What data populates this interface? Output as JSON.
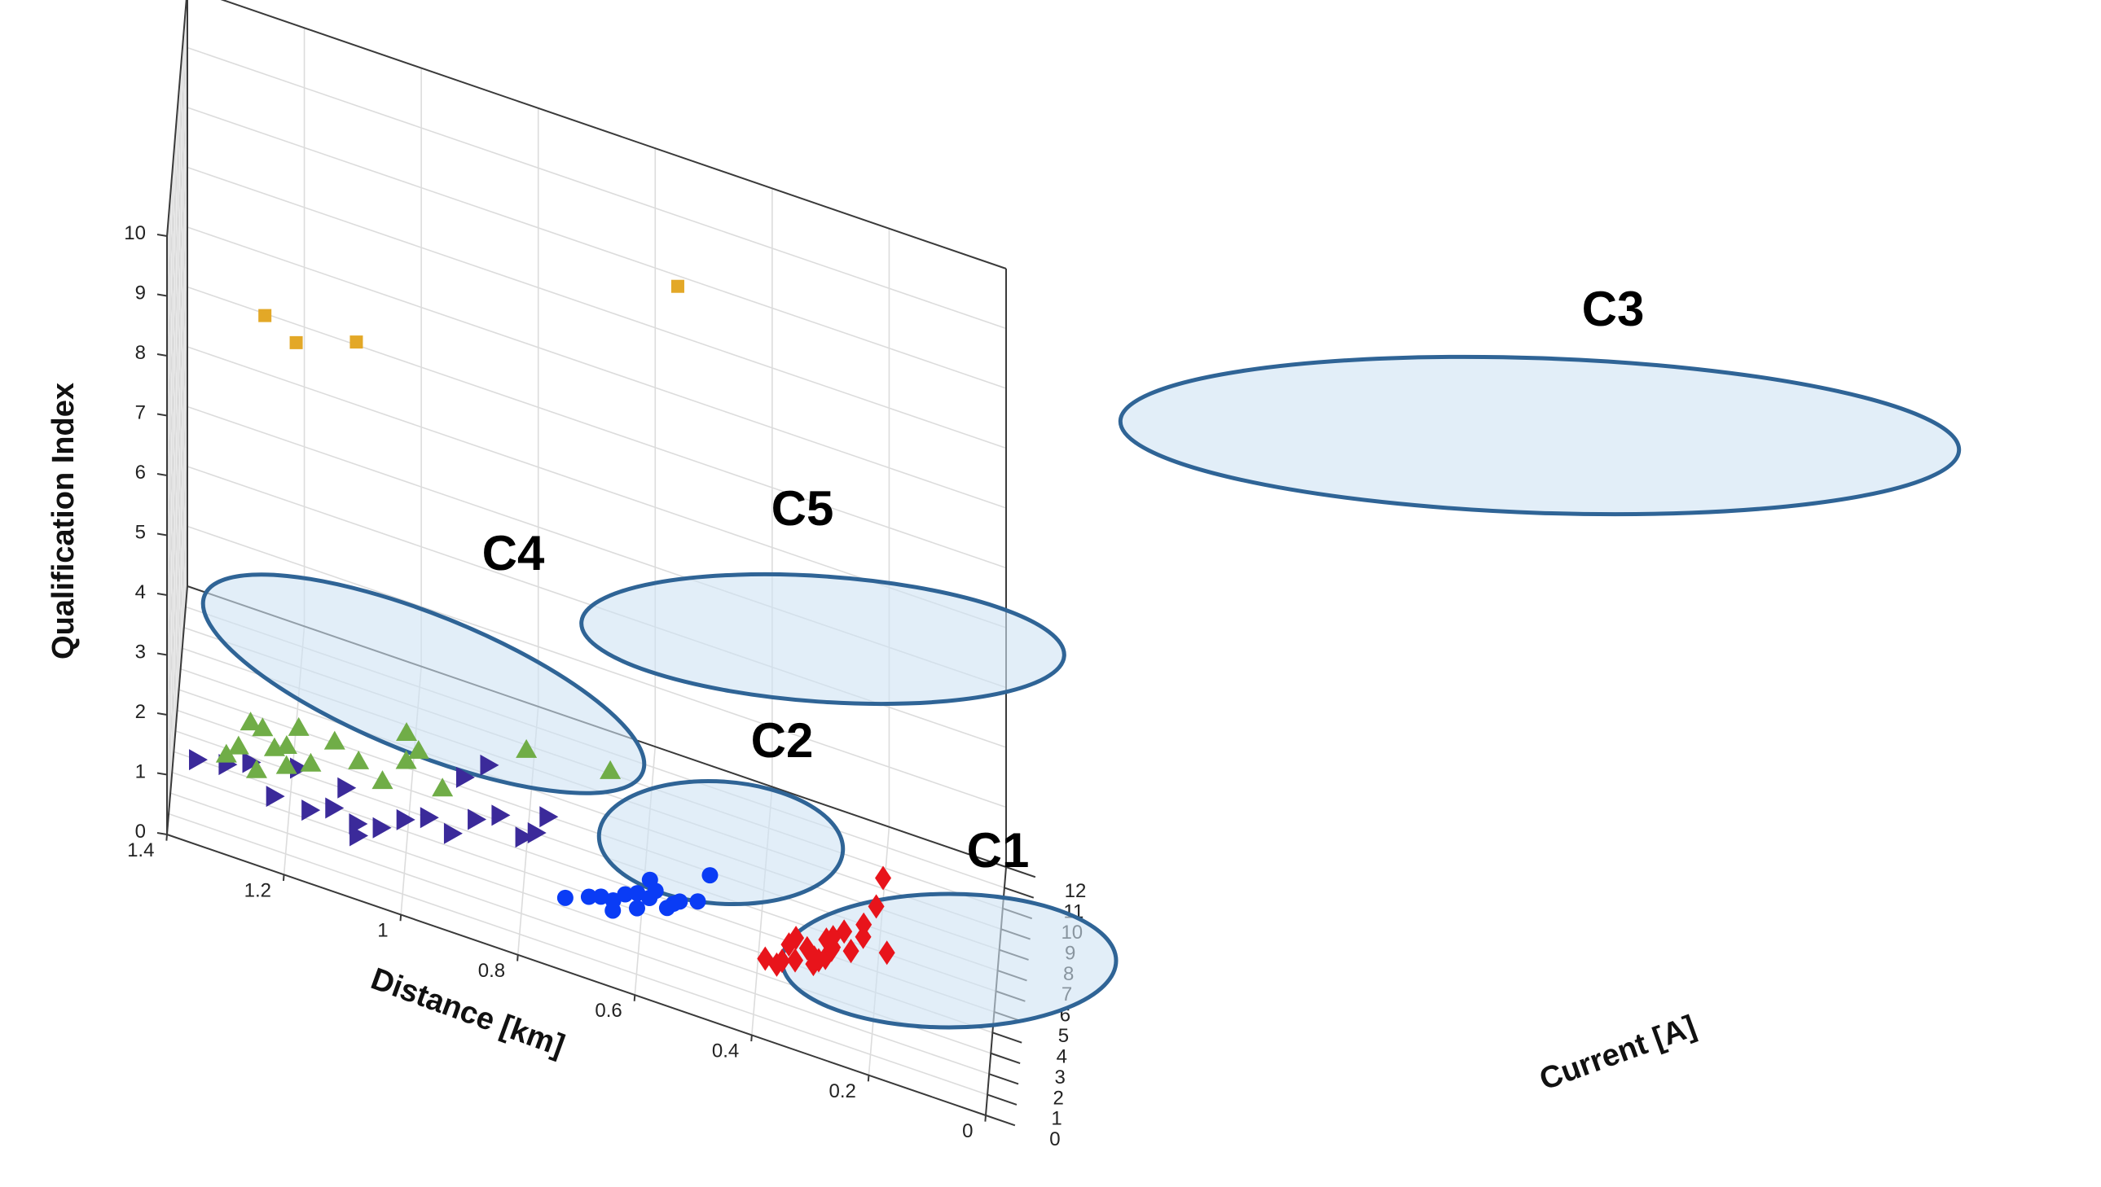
{
  "chart_data": {
    "type": "scatter3d",
    "title": "",
    "xlabel": "Current [A]",
    "ylabel": "Distance [km]",
    "zlabel": "Qualification Index",
    "xlim": [
      0,
      12
    ],
    "ylim": [
      0,
      1.4
    ],
    "zlim": [
      0,
      10
    ],
    "x_ticks": [
      "0",
      "1",
      "2",
      "3",
      "4",
      "5",
      "6",
      "7",
      "8",
      "9",
      "10",
      "11",
      "12"
    ],
    "y_ticks": [
      "0",
      "0.2",
      "0.4",
      "0.6",
      "0.8",
      "1",
      "1.2",
      "1.4"
    ],
    "z_ticks": [
      "0",
      "1",
      "2",
      "3",
      "4",
      "5",
      "6",
      "7",
      "8",
      "9",
      "10"
    ],
    "grid": true,
    "ellipse_fill": "#cfe2f3",
    "ellipse_stroke": "#2f6496",
    "series": [
      {
        "name": "C1",
        "label": "C1",
        "marker": "diamond",
        "color": "#e8141b",
        "points": [
          [
            0.6,
            0.35,
            1.2
          ],
          [
            0.9,
            0.36,
            1.0
          ],
          [
            1.2,
            0.34,
            1.3
          ],
          [
            1.4,
            0.33,
            1.0
          ],
          [
            1.6,
            0.31,
            1.2
          ],
          [
            1.8,
            0.3,
            0.9
          ],
          [
            2.0,
            0.28,
            1.0
          ],
          [
            2.2,
            0.27,
            1.1
          ],
          [
            2.4,
            0.3,
            0.8
          ],
          [
            2.6,
            0.28,
            1.1
          ],
          [
            2.9,
            0.27,
            0.9
          ],
          [
            3.3,
            0.24,
            0.8
          ],
          [
            3.6,
            0.22,
            1.0
          ],
          [
            3.8,
            0.18,
            0.8
          ],
          [
            3.9,
            0.22,
            1.1
          ],
          [
            4.4,
            0.2,
            1.3
          ],
          [
            5.0,
            0.19,
            1.6
          ],
          [
            1.0,
            0.38,
            1.0
          ],
          [
            1.5,
            0.29,
            1.1
          ],
          [
            2.7,
            0.25,
            1.3
          ],
          [
            1.9,
            0.33,
            1.2
          ],
          [
            3.1,
            0.27,
            1.0
          ]
        ]
      },
      {
        "name": "C2",
        "label": "C2",
        "marker": "circle",
        "color": "#0a3cf5",
        "points": [
          [
            0.35,
            0.72,
            1.1
          ],
          [
            0.5,
            0.68,
            1.2
          ],
          [
            0.7,
            0.66,
            1.2
          ],
          [
            1.0,
            0.64,
            1.1
          ],
          [
            1.2,
            0.62,
            1.2
          ],
          [
            1.45,
            0.6,
            1.2
          ],
          [
            1.7,
            0.58,
            1.1
          ],
          [
            1.85,
            0.57,
            1.2
          ],
          [
            2.0,
            0.58,
            1.3
          ],
          [
            2.1,
            0.54,
            1.0
          ],
          [
            2.3,
            0.53,
            1.0
          ],
          [
            2.6,
            0.5,
            1.0
          ],
          [
            0.8,
            0.64,
            1.0
          ],
          [
            1.3,
            0.6,
            1.0
          ],
          [
            1.8,
            0.55,
            1.0
          ],
          [
            2.9,
            0.48,
            1.4
          ]
        ]
      },
      {
        "name": "C3",
        "label": "C3",
        "marker": "square",
        "color": "#e3a827",
        "points": [
          [
            6.0,
            1.25,
            7.1
          ],
          [
            7.2,
            1.2,
            6.4
          ],
          [
            8.2,
            1.1,
            6.4
          ],
          [
            11.5,
            0.56,
            8.0
          ]
        ]
      },
      {
        "name": "C4",
        "label": "C4",
        "marker": "triangle-right",
        "color": "#3b2a9a",
        "points": [
          [
            0.05,
            1.35,
            1.4
          ],
          [
            0.3,
            1.3,
            1.4
          ],
          [
            0.5,
            1.26,
            1.5
          ],
          [
            0.7,
            1.22,
            1.0
          ],
          [
            0.9,
            1.16,
            0.9
          ],
          [
            1.1,
            1.12,
            1.0
          ],
          [
            1.3,
            1.08,
            0.8
          ],
          [
            1.5,
            1.04,
            0.8
          ],
          [
            1.7,
            1.0,
            1.0
          ],
          [
            1.9,
            0.96,
            1.1
          ],
          [
            2.1,
            0.92,
            0.9
          ],
          [
            2.3,
            0.88,
            1.2
          ],
          [
            2.6,
            0.84,
            1.3
          ],
          [
            1.0,
            1.18,
            1.5
          ],
          [
            1.6,
            1.08,
            0.5
          ],
          [
            2.4,
            0.9,
            1.8
          ],
          [
            2.8,
            0.86,
            2.0
          ],
          [
            2.8,
            0.8,
            1.0
          ],
          [
            3.2,
            0.78,
            1.0
          ],
          [
            3.3,
            0.76,
            1.3
          ],
          [
            1.4,
            1.1,
            1.3
          ]
        ]
      },
      {
        "name": "C5",
        "label": "C5",
        "marker": "triangle-up",
        "color": "#70ad47",
        "points": [
          [
            0.5,
            1.3,
            1.5
          ],
          [
            0.8,
            1.28,
            1.6
          ],
          [
            1.0,
            1.26,
            2.0
          ],
          [
            1.2,
            1.24,
            1.9
          ],
          [
            1.3,
            1.22,
            1.6
          ],
          [
            1.6,
            1.2,
            1.6
          ],
          [
            1.8,
            1.18,
            1.9
          ],
          [
            2.0,
            1.16,
            1.3
          ],
          [
            2.3,
            1.12,
            1.7
          ],
          [
            2.6,
            1.08,
            1.4
          ],
          [
            2.9,
            1.04,
            1.1
          ],
          [
            3.3,
            1.0,
            1.9
          ],
          [
            3.5,
            0.98,
            1.6
          ],
          [
            3.8,
            0.94,
            1.0
          ],
          [
            5.0,
            0.8,
            1.7
          ],
          [
            6.2,
            0.66,
            1.4
          ],
          [
            1.5,
            1.2,
            1.3
          ],
          [
            3.1,
            1.0,
            1.5
          ],
          [
            1.1,
            1.25,
            1.2
          ]
        ]
      }
    ]
  }
}
